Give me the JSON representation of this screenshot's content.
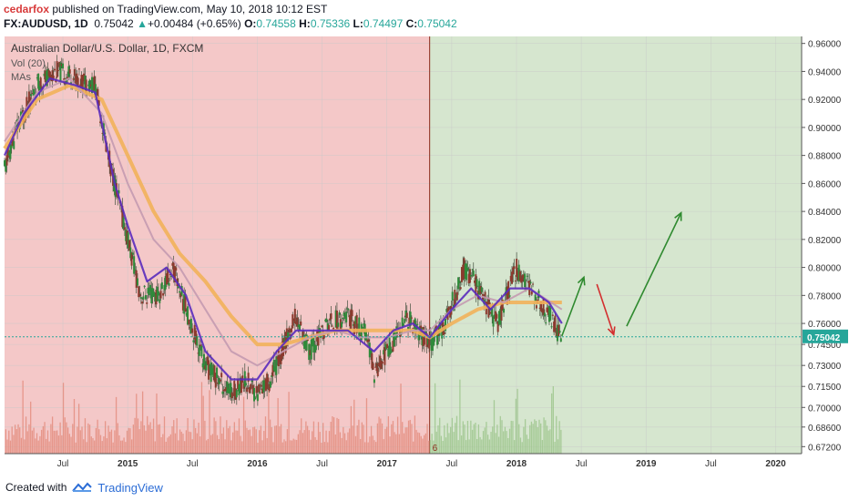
{
  "header": {
    "author": "cedarfox",
    "published": " published on TradingView.com, May 10, 2018 10:12 EST",
    "symbol": "FX:AUDUSD, 1D",
    "last": "0.75042",
    "change": "+0.00484 (+0.65%)",
    "o_label": "O:",
    "o_val": "0.74558",
    "h_label": "H:",
    "h_val": "0.75336",
    "l_label": "L:",
    "l_val": "0.74497",
    "c_label": "C:",
    "c_val": "0.75042"
  },
  "legend": {
    "title": "Australian Dollar/U.S. Dollar, 1D, FXCM",
    "vol": "Vol (20)",
    "mas": "MAs"
  },
  "footer": {
    "created": "Created with",
    "brand": "TradingView"
  },
  "colors": {
    "bear_zone": "#f4c8c8",
    "bull_zone": "#d6e6cf",
    "ma_fast": "#5a2bbd",
    "ma_mid": "#c49ab0",
    "ma_slow": "#f2b15a",
    "candle": "#2f8a3a",
    "volume": "#e28a7a",
    "price_line": "#26a69a",
    "arrow_up": "#2f8a2f",
    "arrow_down": "#d32f2f"
  },
  "chart_data": {
    "type": "line",
    "title": "Australian Dollar/U.S. Dollar, 1D, FXCM",
    "x_ticks": [
      "Jul",
      "2015",
      "Jul",
      "2016",
      "Jul",
      "2017",
      "Jul",
      "2018",
      "Jul",
      "2019",
      "Jul",
      "2020"
    ],
    "x_tick_dates": [
      2014.5,
      2015.0,
      2015.5,
      2016.0,
      2016.5,
      2017.0,
      2017.5,
      2018.0,
      2018.5,
      2019.0,
      2019.5,
      2020.0
    ],
    "x_range": [
      2014.05,
      2020.2
    ],
    "y_ticks": [
      "0.96000",
      "0.94000",
      "0.92000",
      "0.90000",
      "0.88000",
      "0.86000",
      "0.84000",
      "0.82000",
      "0.80000",
      "0.78000",
      "0.76000",
      "0.74500",
      "0.73000",
      "0.71500",
      "0.70000",
      "0.68600",
      "0.67200"
    ],
    "y_range": [
      0.667,
      0.965
    ],
    "last_price": "0.75042",
    "last_price_value": 0.75042,
    "zone_split_date": 2017.33,
    "zone_split_label": "6",
    "price_series": {
      "name": "AUDUSD",
      "points": [
        [
          2014.05,
          0.87
        ],
        [
          2014.15,
          0.9
        ],
        [
          2014.3,
          0.93
        ],
        [
          2014.45,
          0.94
        ],
        [
          2014.6,
          0.935
        ],
        [
          2014.75,
          0.93
        ],
        [
          2014.85,
          0.88
        ],
        [
          2015.0,
          0.82
        ],
        [
          2015.1,
          0.78
        ],
        [
          2015.25,
          0.78
        ],
        [
          2015.35,
          0.8
        ],
        [
          2015.45,
          0.77
        ],
        [
          2015.6,
          0.73
        ],
        [
          2015.7,
          0.72
        ],
        [
          2015.8,
          0.71
        ],
        [
          2015.9,
          0.72
        ],
        [
          2016.0,
          0.71
        ],
        [
          2016.1,
          0.72
        ],
        [
          2016.3,
          0.765
        ],
        [
          2016.4,
          0.74
        ],
        [
          2016.55,
          0.76
        ],
        [
          2016.7,
          0.765
        ],
        [
          2016.85,
          0.75
        ],
        [
          2016.9,
          0.725
        ],
        [
          2017.0,
          0.74
        ],
        [
          2017.15,
          0.765
        ],
        [
          2017.33,
          0.745
        ],
        [
          2017.45,
          0.76
        ],
        [
          2017.6,
          0.8
        ],
        [
          2017.7,
          0.785
        ],
        [
          2017.85,
          0.76
        ],
        [
          2018.0,
          0.8
        ],
        [
          2018.1,
          0.785
        ],
        [
          2018.25,
          0.765
        ],
        [
          2018.35,
          0.75
        ]
      ]
    },
    "ma_fast": {
      "name": "MA fast",
      "points": [
        [
          2014.05,
          0.88
        ],
        [
          2014.2,
          0.91
        ],
        [
          2014.4,
          0.935
        ],
        [
          2014.6,
          0.93
        ],
        [
          2014.75,
          0.925
        ],
        [
          2014.9,
          0.86
        ],
        [
          2015.0,
          0.83
        ],
        [
          2015.15,
          0.79
        ],
        [
          2015.3,
          0.8
        ],
        [
          2015.45,
          0.78
        ],
        [
          2015.6,
          0.74
        ],
        [
          2015.8,
          0.72
        ],
        [
          2016.0,
          0.72
        ],
        [
          2016.15,
          0.74
        ],
        [
          2016.3,
          0.755
        ],
        [
          2016.5,
          0.755
        ],
        [
          2016.7,
          0.755
        ],
        [
          2016.9,
          0.74
        ],
        [
          2017.05,
          0.755
        ],
        [
          2017.2,
          0.76
        ],
        [
          2017.33,
          0.75
        ],
        [
          2017.5,
          0.77
        ],
        [
          2017.65,
          0.785
        ],
        [
          2017.8,
          0.77
        ],
        [
          2017.95,
          0.785
        ],
        [
          2018.1,
          0.785
        ],
        [
          2018.25,
          0.775
        ],
        [
          2018.35,
          0.76
        ]
      ]
    },
    "ma_mid": {
      "name": "MA mid",
      "points": [
        [
          2014.05,
          0.89
        ],
        [
          2014.3,
          0.925
        ],
        [
          2014.55,
          0.935
        ],
        [
          2014.8,
          0.91
        ],
        [
          2015.0,
          0.86
        ],
        [
          2015.2,
          0.82
        ],
        [
          2015.4,
          0.8
        ],
        [
          2015.6,
          0.77
        ],
        [
          2015.8,
          0.74
        ],
        [
          2016.0,
          0.73
        ],
        [
          2016.2,
          0.74
        ],
        [
          2016.4,
          0.75
        ],
        [
          2016.6,
          0.755
        ],
        [
          2016.8,
          0.75
        ],
        [
          2017.0,
          0.75
        ],
        [
          2017.2,
          0.755
        ],
        [
          2017.33,
          0.755
        ],
        [
          2017.5,
          0.77
        ],
        [
          2017.7,
          0.78
        ],
        [
          2017.9,
          0.775
        ],
        [
          2018.1,
          0.785
        ],
        [
          2018.35,
          0.77
        ]
      ]
    },
    "ma_slow": {
      "name": "MA slow",
      "points": [
        [
          2014.05,
          0.885
        ],
        [
          2014.3,
          0.92
        ],
        [
          2014.55,
          0.93
        ],
        [
          2014.8,
          0.92
        ],
        [
          2015.0,
          0.88
        ],
        [
          2015.2,
          0.84
        ],
        [
          2015.4,
          0.81
        ],
        [
          2015.6,
          0.79
        ],
        [
          2015.8,
          0.765
        ],
        [
          2016.0,
          0.745
        ],
        [
          2016.2,
          0.745
        ],
        [
          2016.4,
          0.75
        ],
        [
          2016.6,
          0.755
        ],
        [
          2016.8,
          0.755
        ],
        [
          2017.0,
          0.755
        ],
        [
          2017.2,
          0.755
        ],
        [
          2017.33,
          0.75
        ],
        [
          2017.5,
          0.76
        ],
        [
          2017.7,
          0.77
        ],
        [
          2017.9,
          0.775
        ],
        [
          2018.1,
          0.775
        ],
        [
          2018.35,
          0.775
        ]
      ]
    },
    "volume_max_date": 2018.35,
    "arrows": [
      {
        "kind": "up",
        "from": [
          2018.35,
          0.751
        ],
        "to": [
          2018.52,
          0.793
        ]
      },
      {
        "kind": "down",
        "from": [
          2018.62,
          0.788
        ],
        "to": [
          2018.75,
          0.752
        ]
      },
      {
        "kind": "up",
        "from": [
          2018.85,
          0.758
        ],
        "to": [
          2019.27,
          0.839
        ]
      }
    ]
  }
}
